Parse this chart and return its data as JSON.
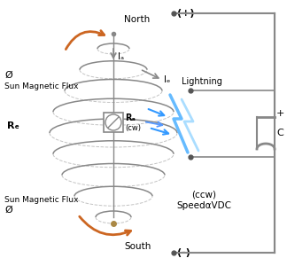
{
  "bg_color": "#ffffff",
  "coil_color": "#888888",
  "arrow_color": "#cc6622",
  "circuit_color": "#888888",
  "lightning_color": "#44aaff",
  "text_color": "#000000",
  "label_Ia": "Iₐ",
  "label_If": "Iₑ",
  "label_Ra": "Rₐ",
  "label_Rf": "Rₑ",
  "label_north": "North",
  "label_south": "South",
  "label_plus": "(+)",
  "label_minus": "(-)",
  "label_cw": "(cw)",
  "label_lightning": "Lightning",
  "label_ccw_line1": "(ccw)",
  "label_ccw_line2": "SpeedαVDC",
  "label_sun_flux_top_1": "Ø",
  "label_sun_flux_top_2": "Sun Magnetic Flux",
  "label_sun_flux_bot_1": "Sun Magnetic Flux",
  "label_sun_flux_bot_2": "Ø",
  "label_C": "C",
  "label_plus_cap": "+"
}
